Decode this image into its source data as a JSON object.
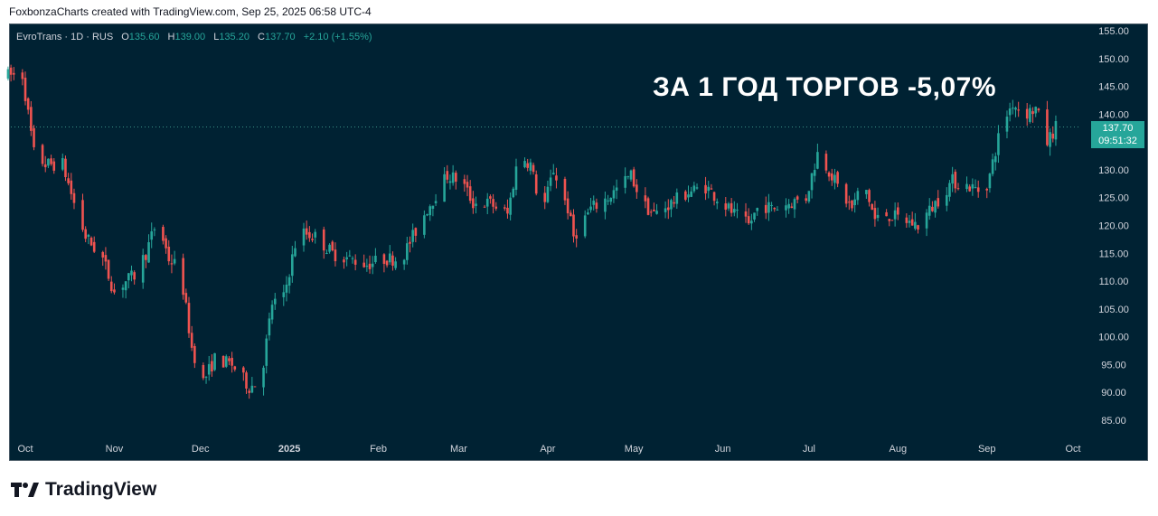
{
  "header": {
    "credit": "FoxbonzaCharts created with TradingView.com, Sep 25, 2025 06:58 UTC-4"
  },
  "legend": {
    "symbol": "EvroTrans · 1D · RUS",
    "open_label": "O",
    "open": "135.60",
    "high_label": "H",
    "high": "139.00",
    "low_label": "L",
    "low": "135.20",
    "close_label": "C",
    "close": "137.70",
    "change": "+2.10 (+1.55%)"
  },
  "annotation": {
    "headline": "ЗА 1 ГОД ТОРГОВ -5,07%"
  },
  "price_tag": {
    "price": "137.70",
    "countdown": "09:51:32"
  },
  "brand": {
    "name": "TradingView",
    "icon": "tradingview-logo-icon"
  },
  "colors": {
    "background": "#002233",
    "up": "#26a69a",
    "down": "#ef5350",
    "text": "#d1d4dc"
  },
  "chart_data": {
    "type": "candlestick",
    "ylim": [
      82,
      157
    ],
    "y_ticks": [
      "155.00",
      "150.00",
      "145.00",
      "140.00",
      "135.00",
      "130.00",
      "125.00",
      "120.00",
      "115.00",
      "110.00",
      "105.00",
      "100.00",
      "95.00",
      "90.00",
      "85.00"
    ],
    "x_ticks": [
      {
        "label": "Oct",
        "date": "2024-10-01",
        "bold": false
      },
      {
        "label": "Nov",
        "date": "2024-11-01",
        "bold": false
      },
      {
        "label": "Dec",
        "date": "2024-12-01",
        "bold": false
      },
      {
        "label": "2025",
        "date": "2025-01-01",
        "bold": true
      },
      {
        "label": "Feb",
        "date": "2025-02-01",
        "bold": false
      },
      {
        "label": "Mar",
        "date": "2025-03-01",
        "bold": false
      },
      {
        "label": "Apr",
        "date": "2025-04-01",
        "bold": false
      },
      {
        "label": "May",
        "date": "2025-05-01",
        "bold": false
      },
      {
        "label": "Jun",
        "date": "2025-06-01",
        "bold": false
      },
      {
        "label": "Jul",
        "date": "2025-07-01",
        "bold": false
      },
      {
        "label": "Aug",
        "date": "2025-08-01",
        "bold": false
      },
      {
        "label": "Sep",
        "date": "2025-09-01",
        "bold": false
      },
      {
        "label": "Oct",
        "date": "2025-10-01",
        "bold": false
      }
    ],
    "last_price": 137.7,
    "close_path": [
      [
        "2024-09-25",
        147
      ],
      [
        "2024-09-30",
        147
      ],
      [
        "2024-10-04",
        133
      ],
      [
        "2024-10-08",
        131
      ],
      [
        "2024-10-14",
        131
      ],
      [
        "2024-10-18",
        124
      ],
      [
        "2024-10-22",
        118
      ],
      [
        "2024-10-28",
        114
      ],
      [
        "2024-11-01",
        108
      ],
      [
        "2024-11-05",
        110
      ],
      [
        "2024-11-08",
        111
      ],
      [
        "2024-11-12",
        115
      ],
      [
        "2024-11-16",
        121
      ],
      [
        "2024-11-20",
        114
      ],
      [
        "2024-11-24",
        112
      ],
      [
        "2024-11-28",
        98
      ],
      [
        "2024-12-02",
        92
      ],
      [
        "2024-12-06",
        96
      ],
      [
        "2024-12-12",
        95
      ],
      [
        "2024-12-18",
        91
      ],
      [
        "2024-12-22",
        92
      ],
      [
        "2024-12-26",
        106
      ],
      [
        "2024-12-30",
        107
      ],
      [
        "2025-01-04",
        119
      ],
      [
        "2025-01-10",
        118
      ],
      [
        "2025-01-16",
        115
      ],
      [
        "2025-01-22",
        114
      ],
      [
        "2025-01-28",
        113
      ],
      [
        "2025-02-03",
        114
      ],
      [
        "2025-02-09",
        114
      ],
      [
        "2025-02-14",
        119
      ],
      [
        "2025-02-18",
        123
      ],
      [
        "2025-02-25",
        129
      ],
      [
        "2025-03-02",
        128
      ],
      [
        "2025-03-06",
        124
      ],
      [
        "2025-03-12",
        124
      ],
      [
        "2025-03-18",
        122
      ],
      [
        "2025-03-22",
        133
      ],
      [
        "2025-03-26",
        131
      ],
      [
        "2025-03-30",
        122
      ],
      [
        "2025-04-03",
        130
      ],
      [
        "2025-04-08",
        123
      ],
      [
        "2025-04-10",
        118
      ],
      [
        "2025-04-16",
        123
      ],
      [
        "2025-04-22",
        125
      ],
      [
        "2025-04-30",
        129
      ],
      [
        "2025-05-04",
        124
      ],
      [
        "2025-05-08",
        122
      ],
      [
        "2025-05-14",
        124
      ],
      [
        "2025-05-20",
        126
      ],
      [
        "2025-05-26",
        127
      ],
      [
        "2025-06-01",
        124
      ],
      [
        "2025-06-05",
        122
      ],
      [
        "2025-06-10",
        120
      ],
      [
        "2025-06-14",
        124
      ],
      [
        "2025-06-18",
        123
      ],
      [
        "2025-06-24",
        124
      ],
      [
        "2025-06-30",
        125
      ],
      [
        "2025-07-04",
        133
      ],
      [
        "2025-07-08",
        130
      ],
      [
        "2025-07-12",
        126
      ],
      [
        "2025-07-16",
        123
      ],
      [
        "2025-07-20",
        128
      ],
      [
        "2025-07-24",
        121
      ],
      [
        "2025-07-28",
        122
      ],
      [
        "2025-08-03",
        121
      ],
      [
        "2025-08-08",
        120
      ],
      [
        "2025-08-14",
        124
      ],
      [
        "2025-08-20",
        128
      ],
      [
        "2025-08-26",
        127
      ],
      [
        "2025-08-31",
        126
      ],
      [
        "2025-09-02",
        129
      ],
      [
        "2025-09-06",
        138
      ],
      [
        "2025-09-10",
        142
      ],
      [
        "2025-09-14",
        140
      ],
      [
        "2025-09-18",
        141
      ],
      [
        "2025-09-22",
        135
      ],
      [
        "2025-09-25",
        137.7
      ]
    ]
  }
}
